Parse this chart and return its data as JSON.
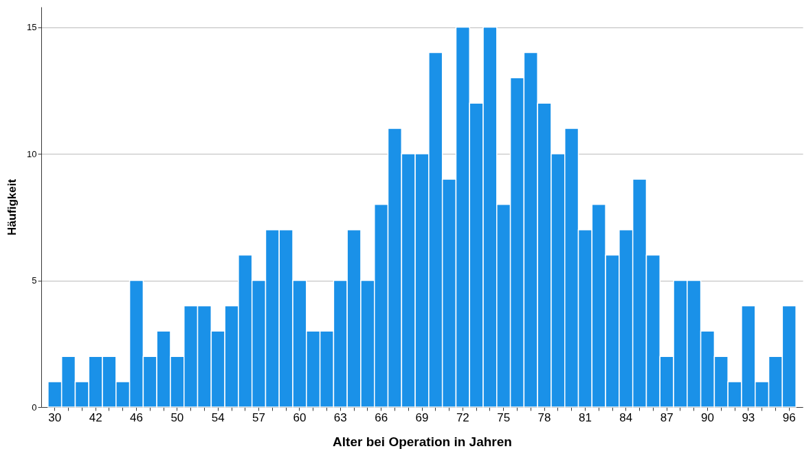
{
  "chart_data": {
    "type": "bar",
    "xlabel": "Alter bei Operation in Jahren",
    "ylabel": "Häufigkeit",
    "categories": [
      "30",
      null,
      null,
      "42",
      null,
      null,
      "46",
      null,
      null,
      "50",
      null,
      null,
      "54",
      null,
      null,
      "57",
      null,
      null,
      "60",
      null,
      null,
      "63",
      null,
      null,
      "66",
      null,
      null,
      "69",
      null,
      null,
      "72",
      null,
      null,
      "75",
      null,
      null,
      "78",
      null,
      null,
      "81",
      null,
      null,
      "84",
      null,
      null,
      "87",
      null,
      null,
      "90",
      null,
      null,
      "93",
      null,
      null,
      "96"
    ],
    "values": [
      1,
      2,
      1,
      2,
      2,
      1,
      5,
      2,
      3,
      2,
      4,
      4,
      3,
      4,
      6,
      5,
      7,
      7,
      5,
      3,
      3,
      5,
      7,
      5,
      8,
      11,
      10,
      10,
      14,
      9,
      15,
      12,
      15,
      8,
      13,
      14,
      12,
      10,
      11,
      7,
      8,
      6,
      7,
      9,
      6,
      2,
      5,
      5,
      3,
      2,
      1,
      4,
      1,
      2,
      4
    ],
    "color": "#1a91e8",
    "ylim": [
      0,
      15.8
    ],
    "yticks": [
      0,
      5,
      10,
      15
    ],
    "grid": "y"
  }
}
